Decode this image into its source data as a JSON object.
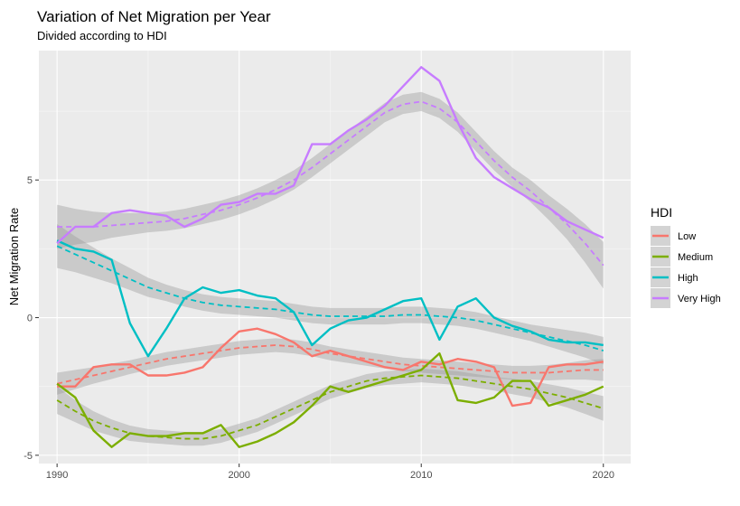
{
  "chart_data": {
    "type": "line",
    "title": "Variation of Net Migration per Year",
    "subtitle": "Divided according to HDI",
    "xlabel": "",
    "ylabel": "Net Migration Rate",
    "xlim": [
      1989,
      2021.5
    ],
    "ylim": [
      -5.3,
      9.7
    ],
    "x_ticks": [
      1990,
      2000,
      2010,
      2020
    ],
    "y_ticks": [
      -5,
      0,
      5
    ],
    "grid": true,
    "smooth_trend": "dashed line with grey confidence band",
    "legend": {
      "title": "HDI",
      "position": "right"
    },
    "x": [
      1990,
      1991,
      1992,
      1993,
      1994,
      1995,
      1996,
      1997,
      1998,
      1999,
      2000,
      2001,
      2002,
      2003,
      2004,
      2005,
      2006,
      2007,
      2008,
      2009,
      2010,
      2011,
      2012,
      2013,
      2014,
      2015,
      2016,
      2017,
      2018,
      2019,
      2020
    ],
    "series": [
      {
        "name": "Low",
        "color": "#F8766D",
        "values": [
          -2.5,
          -2.5,
          -1.8,
          -1.7,
          -1.7,
          -2.1,
          -2.1,
          -2.0,
          -1.8,
          -1.1,
          -0.5,
          -0.4,
          -0.6,
          -0.9,
          -1.4,
          -1.2,
          -1.4,
          -1.6,
          -1.8,
          -1.9,
          -1.6,
          -1.7,
          -1.5,
          -1.6,
          -1.8,
          -3.2,
          -3.1,
          -1.8,
          -1.7,
          -1.7,
          -1.6
        ],
        "trend": [
          -2.4,
          -2.25,
          -2.1,
          -1.95,
          -1.8,
          -1.65,
          -1.5,
          -1.4,
          -1.3,
          -1.2,
          -1.1,
          -1.05,
          -1.0,
          -1.05,
          -1.15,
          -1.3,
          -1.4,
          -1.5,
          -1.6,
          -1.7,
          -1.75,
          -1.8,
          -1.85,
          -1.9,
          -1.95,
          -2.0,
          -2.0,
          -2.0,
          -1.95,
          -1.9,
          -1.9
        ],
        "band_halfwidth": [
          0.4,
          0.35,
          0.3,
          0.28,
          0.25,
          0.25,
          0.25,
          0.25,
          0.25,
          0.25,
          0.25,
          0.25,
          0.25,
          0.25,
          0.25,
          0.25,
          0.25,
          0.25,
          0.25,
          0.25,
          0.25,
          0.25,
          0.25,
          0.25,
          0.25,
          0.25,
          0.25,
          0.28,
          0.3,
          0.35,
          0.4
        ]
      },
      {
        "name": "Medium",
        "color": "#7CAE00",
        "values": [
          -2.4,
          -2.9,
          -4.1,
          -4.7,
          -4.2,
          -4.3,
          -4.3,
          -4.2,
          -4.2,
          -3.9,
          -4.7,
          -4.5,
          -4.2,
          -3.8,
          -3.2,
          -2.5,
          -2.7,
          -2.5,
          -2.3,
          -2.1,
          -1.9,
          -1.3,
          -3.0,
          -3.1,
          -2.9,
          -2.3,
          -2.3,
          -3.2,
          -3.0,
          -2.8,
          -2.5
        ],
        "trend": [
          -3.0,
          -3.4,
          -3.75,
          -4.0,
          -4.2,
          -4.3,
          -4.35,
          -4.4,
          -4.4,
          -4.3,
          -4.1,
          -3.9,
          -3.6,
          -3.3,
          -3.0,
          -2.7,
          -2.5,
          -2.3,
          -2.2,
          -2.15,
          -2.1,
          -2.15,
          -2.2,
          -2.3,
          -2.4,
          -2.5,
          -2.6,
          -2.75,
          -2.9,
          -3.1,
          -3.3
        ],
        "band_halfwidth": [
          0.5,
          0.4,
          0.35,
          0.3,
          0.28,
          0.25,
          0.25,
          0.25,
          0.25,
          0.25,
          0.25,
          0.25,
          0.25,
          0.25,
          0.25,
          0.25,
          0.25,
          0.25,
          0.25,
          0.25,
          0.25,
          0.25,
          0.25,
          0.25,
          0.25,
          0.28,
          0.3,
          0.33,
          0.36,
          0.4,
          0.45
        ]
      },
      {
        "name": "High",
        "color": "#00BFC4",
        "values": [
          2.8,
          2.5,
          2.4,
          2.1,
          -0.2,
          -1.4,
          -0.4,
          0.7,
          1.1,
          0.9,
          1.0,
          0.8,
          0.7,
          0.2,
          -1.0,
          -0.4,
          -0.1,
          0.0,
          0.3,
          0.6,
          0.7,
          -0.8,
          0.4,
          0.7,
          0.0,
          -0.3,
          -0.5,
          -0.8,
          -0.9,
          -0.9,
          -1.0
        ],
        "trend": [
          2.6,
          2.3,
          2.0,
          1.7,
          1.4,
          1.1,
          0.9,
          0.7,
          0.55,
          0.45,
          0.4,
          0.35,
          0.3,
          0.2,
          0.1,
          0.05,
          0.05,
          0.05,
          0.05,
          0.1,
          0.1,
          0.05,
          0.0,
          -0.1,
          -0.25,
          -0.4,
          -0.55,
          -0.7,
          -0.85,
          -1.0,
          -1.2
        ],
        "band_halfwidth": [
          0.8,
          0.65,
          0.55,
          0.45,
          0.4,
          0.35,
          0.3,
          0.3,
          0.3,
          0.3,
          0.3,
          0.3,
          0.3,
          0.3,
          0.3,
          0.3,
          0.3,
          0.3,
          0.3,
          0.3,
          0.3,
          0.3,
          0.3,
          0.3,
          0.3,
          0.3,
          0.3,
          0.35,
          0.4,
          0.45,
          0.5
        ]
      },
      {
        "name": "Very High",
        "color": "#C77CFF",
        "values": [
          2.7,
          3.3,
          3.3,
          3.8,
          3.9,
          3.8,
          3.7,
          3.3,
          3.6,
          4.1,
          4.2,
          4.5,
          4.5,
          4.8,
          6.3,
          6.3,
          6.8,
          7.2,
          7.7,
          8.4,
          9.1,
          8.6,
          7.1,
          5.8,
          5.1,
          4.7,
          4.3,
          4.0,
          3.5,
          3.2,
          2.9
        ],
        "trend": [
          3.3,
          3.3,
          3.3,
          3.35,
          3.4,
          3.45,
          3.5,
          3.6,
          3.75,
          3.9,
          4.1,
          4.35,
          4.65,
          5.0,
          5.45,
          5.95,
          6.45,
          6.95,
          7.45,
          7.75,
          7.85,
          7.6,
          7.1,
          6.4,
          5.7,
          5.1,
          4.6,
          4.0,
          3.4,
          2.7,
          1.9
        ],
        "band_halfwidth": [
          0.8,
          0.65,
          0.55,
          0.45,
          0.4,
          0.35,
          0.35,
          0.35,
          0.35,
          0.35,
          0.35,
          0.35,
          0.35,
          0.35,
          0.35,
          0.35,
          0.35,
          0.35,
          0.35,
          0.35,
          0.35,
          0.35,
          0.35,
          0.35,
          0.35,
          0.35,
          0.4,
          0.45,
          0.55,
          0.7,
          0.85
        ]
      }
    ]
  }
}
